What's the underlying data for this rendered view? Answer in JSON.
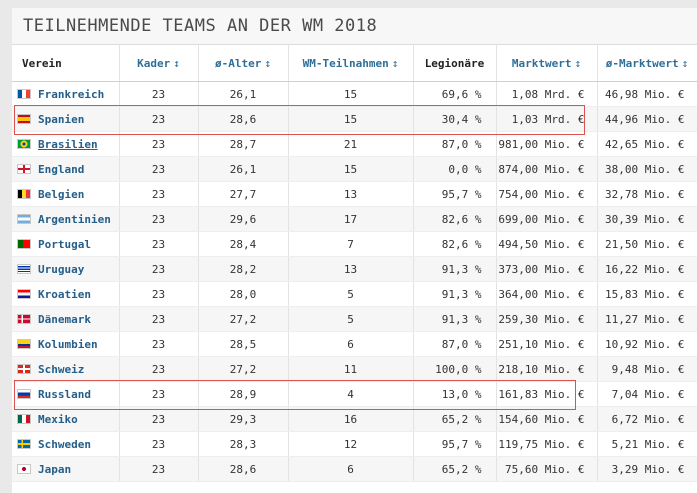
{
  "title": "TEILNEHMENDE TEAMS AN DER WM 2018",
  "columns": [
    {
      "label": "Verein",
      "sortable": false
    },
    {
      "label": "Kader",
      "sortable": true
    },
    {
      "label": "ø-Alter",
      "sortable": true
    },
    {
      "label": "WM-Teilnahmen",
      "sortable": true
    },
    {
      "label": "Legionäre",
      "sortable": false
    },
    {
      "label": "Marktwert",
      "sortable": true
    },
    {
      "label": "ø-Marktwert",
      "sortable": true
    }
  ],
  "sort_glyph": "↕",
  "rows": [
    {
      "team": "Frankreich",
      "flag": "fr",
      "kader": "23",
      "alter": "26,1",
      "wm": "15",
      "legionaere": "69,6 %",
      "marktwert": "1,08 Mrd. €",
      "avg": "46,98 Mio. €"
    },
    {
      "team": "Spanien",
      "flag": "es",
      "kader": "23",
      "alter": "28,6",
      "wm": "15",
      "legionaere": "30,4 %",
      "marktwert": "1,03 Mrd. €",
      "avg": "44,96 Mio. €"
    },
    {
      "team": "Brasilien",
      "flag": "br",
      "kader": "23",
      "alter": "28,7",
      "wm": "21",
      "legionaere": "87,0 %",
      "marktwert": "981,00 Mio. €",
      "avg": "42,65 Mio. €"
    },
    {
      "team": "England",
      "flag": "en",
      "kader": "23",
      "alter": "26,1",
      "wm": "15",
      "legionaere": "0,0 %",
      "marktwert": "874,00 Mio. €",
      "avg": "38,00 Mio. €"
    },
    {
      "team": "Belgien",
      "flag": "be",
      "kader": "23",
      "alter": "27,7",
      "wm": "13",
      "legionaere": "95,7 %",
      "marktwert": "754,00 Mio. €",
      "avg": "32,78 Mio. €"
    },
    {
      "team": "Argentinien",
      "flag": "ar",
      "kader": "23",
      "alter": "29,6",
      "wm": "17",
      "legionaere": "82,6 %",
      "marktwert": "699,00 Mio. €",
      "avg": "30,39 Mio. €"
    },
    {
      "team": "Portugal",
      "flag": "pt",
      "kader": "23",
      "alter": "28,4",
      "wm": "7",
      "legionaere": "82,6 %",
      "marktwert": "494,50 Mio. €",
      "avg": "21,50 Mio. €"
    },
    {
      "team": "Uruguay",
      "flag": "uy",
      "kader": "23",
      "alter": "28,2",
      "wm": "13",
      "legionaere": "91,3 %",
      "marktwert": "373,00 Mio. €",
      "avg": "16,22 Mio. €"
    },
    {
      "team": "Kroatien",
      "flag": "hr",
      "kader": "23",
      "alter": "28,0",
      "wm": "5",
      "legionaere": "91,3 %",
      "marktwert": "364,00 Mio. €",
      "avg": "15,83 Mio. €"
    },
    {
      "team": "Dänemark",
      "flag": "dk",
      "kader": "23",
      "alter": "27,2",
      "wm": "5",
      "legionaere": "91,3 %",
      "marktwert": "259,30 Mio. €",
      "avg": "11,27 Mio. €"
    },
    {
      "team": "Kolumbien",
      "flag": "co",
      "kader": "23",
      "alter": "28,5",
      "wm": "6",
      "legionaere": "87,0 %",
      "marktwert": "251,10 Mio. €",
      "avg": "10,92 Mio. €"
    },
    {
      "team": "Schweiz",
      "flag": "ch",
      "kader": "23",
      "alter": "27,2",
      "wm": "11",
      "legionaere": "100,0 %",
      "marktwert": "218,10 Mio. €",
      "avg": "9,48 Mio. €"
    },
    {
      "team": "Russland",
      "flag": "ru",
      "kader": "23",
      "alter": "28,9",
      "wm": "4",
      "legionaere": "13,0 %",
      "marktwert": "161,83 Mio. €",
      "avg": "7,04 Mio. €"
    },
    {
      "team": "Mexiko",
      "flag": "mx",
      "kader": "23",
      "alter": "29,3",
      "wm": "16",
      "legionaere": "65,2 %",
      "marktwert": "154,60 Mio. €",
      "avg": "6,72 Mio. €"
    },
    {
      "team": "Schweden",
      "flag": "se",
      "kader": "23",
      "alter": "28,3",
      "wm": "12",
      "legionaere": "95,7 %",
      "marktwert": "119,75 Mio. €",
      "avg": "5,21 Mio. €"
    },
    {
      "team": "Japan",
      "flag": "jp",
      "kader": "23",
      "alter": "28,6",
      "wm": "6",
      "legionaere": "65,2 %",
      "marktwert": "75,60 Mio. €",
      "avg": "3,29 Mio. €"
    }
  ],
  "highlighted_teams": [
    "Spanien",
    "Russland"
  ],
  "colors": {
    "link": "#245e8a",
    "highlight": "#d9534f"
  }
}
